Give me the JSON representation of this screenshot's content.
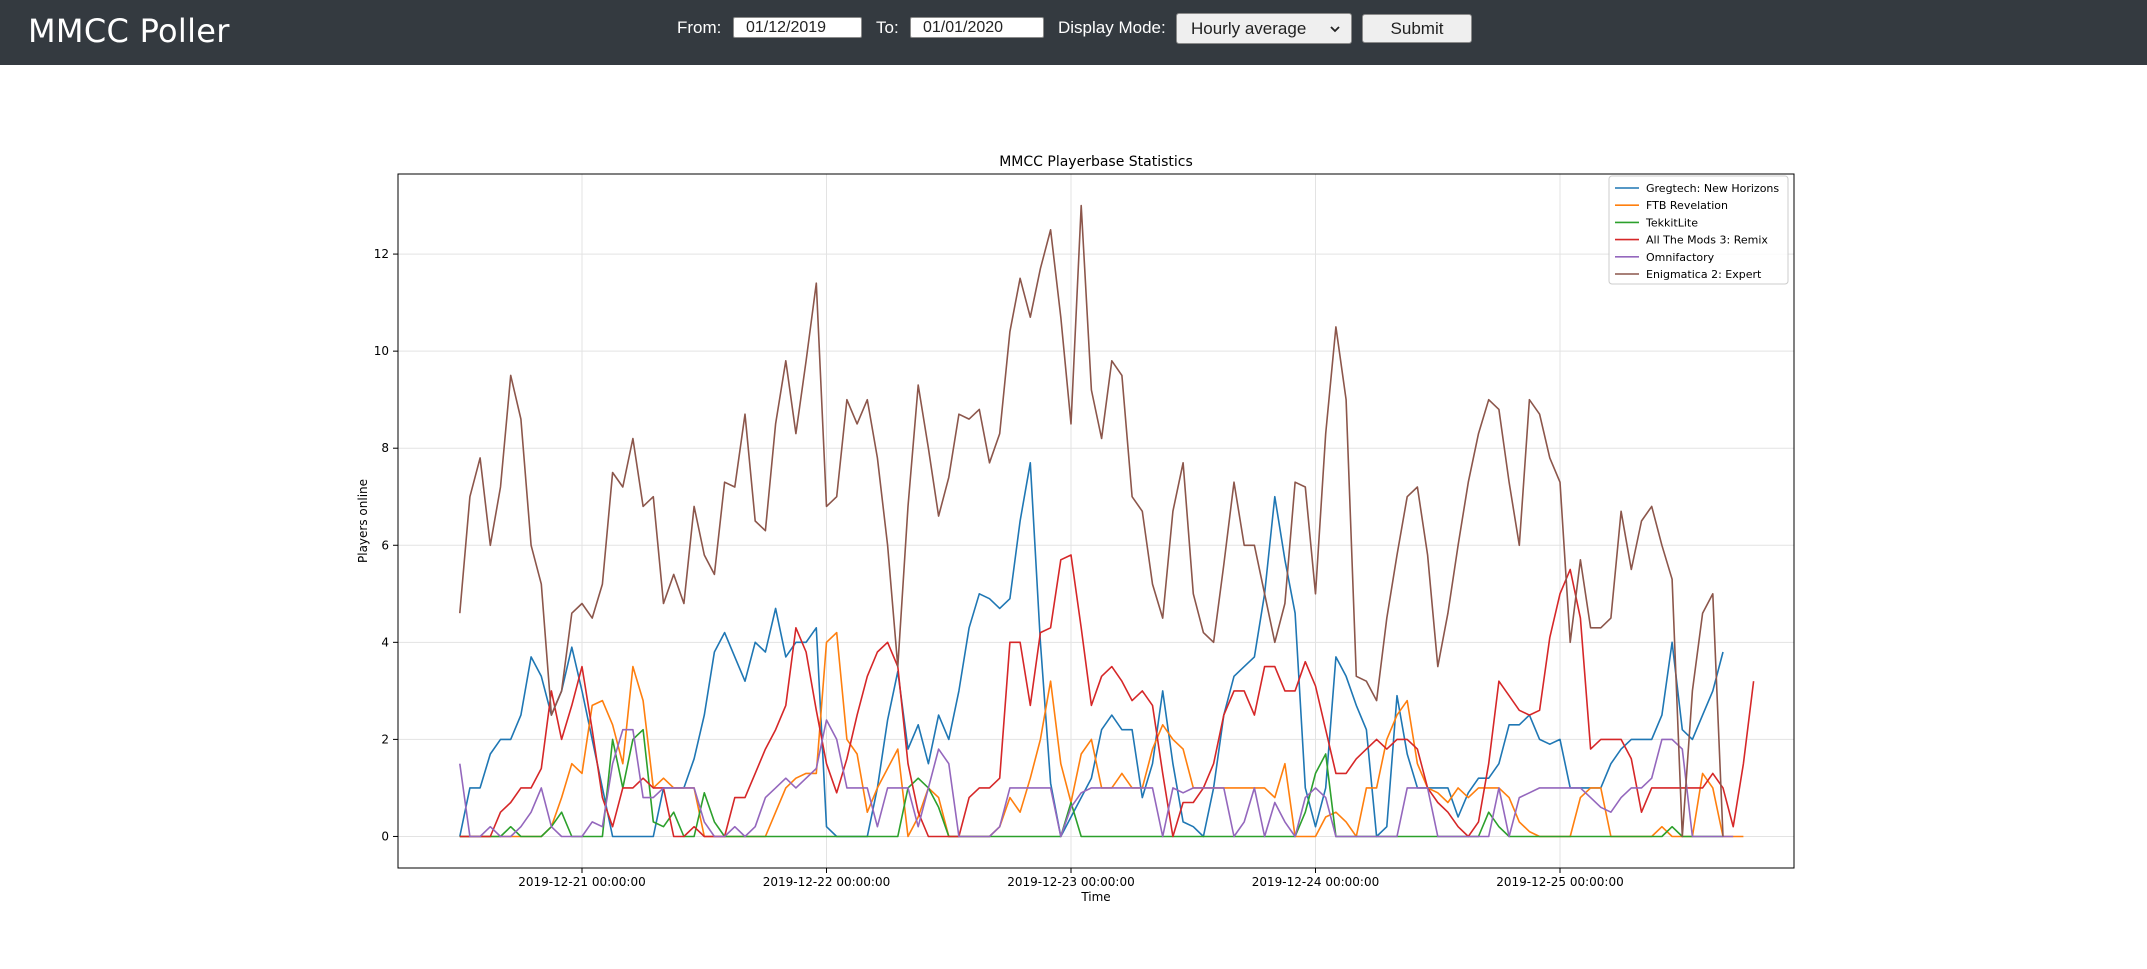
{
  "header": {
    "brand": "MMCC Poller",
    "from_label": "From:",
    "from_value": "01/12/2019",
    "to_label": "To:",
    "to_value": "01/01/2020",
    "mode_label": "Display Mode:",
    "mode_value": "Hourly average",
    "submit_label": "Submit"
  },
  "chart_data": {
    "type": "line",
    "title": "MMCC Playerbase Statistics",
    "xlabel": "Time",
    "ylabel": "Players online",
    "ylim": [
      -0.65,
      13.65
    ],
    "yticks": [
      0,
      2,
      4,
      6,
      8,
      10,
      12
    ],
    "x_start": "2019-12-20 12:00:00",
    "x_step_hours": 1,
    "xticks": [
      "2019-12-21 00:00:00",
      "2019-12-22 00:00:00",
      "2019-12-23 00:00:00",
      "2019-12-24 00:00:00",
      "2019-12-25 00:00:00"
    ],
    "grid": true,
    "legend_position": "top-right",
    "series": [
      {
        "name": "Gregtech: New Horizons",
        "color": "#1f77b4",
        "values": [
          0,
          1,
          1,
          1.7,
          2,
          2,
          2.5,
          3.7,
          3.3,
          2.5,
          3,
          3.9,
          3,
          2,
          1,
          0,
          0,
          0,
          0,
          0,
          1,
          1,
          1,
          1.6,
          2.5,
          3.8,
          4.2,
          3.7,
          3.2,
          4,
          3.8,
          4.7,
          3.7,
          4,
          4,
          4.3,
          0.2,
          0,
          0,
          0,
          0,
          1,
          2.4,
          3.4,
          1.8,
          2.3,
          1.5,
          2.5,
          2,
          3,
          4.3,
          5,
          4.9,
          4.7,
          4.9,
          6.5,
          7.7,
          4,
          1.1,
          0,
          0.4,
          0.8,
          1.2,
          2.2,
          2.5,
          2.2,
          2.2,
          0.8,
          1.5,
          3,
          1.5,
          0.3,
          0.2,
          0,
          1,
          2.5,
          3.3,
          3.5,
          3.7,
          5,
          7,
          5.7,
          4.6,
          1,
          0.2,
          1,
          3.7,
          3.3,
          2.7,
          2.2,
          0,
          0.2,
          2.9,
          1.7,
          1,
          1,
          1,
          1,
          0.4,
          0.9,
          1.2,
          1.2,
          1.5,
          2.3,
          2.3,
          2.5,
          2,
          1.9,
          2,
          1,
          1,
          1,
          1,
          1.5,
          1.8,
          2,
          2,
          2,
          2.5,
          4,
          2.2,
          2,
          2.5,
          3,
          3.8
        ]
      },
      {
        "name": "FTB Revelation",
        "color": "#ff7f0e",
        "values": [
          0,
          0,
          0,
          0,
          0,
          0,
          0,
          0,
          0,
          0.2,
          0.8,
          1.5,
          1.3,
          2.7,
          2.8,
          2.3,
          1.5,
          3.5,
          2.8,
          1,
          1.2,
          1,
          1,
          1,
          0,
          0,
          0,
          0,
          0,
          0,
          0,
          0.5,
          1,
          1.2,
          1.3,
          1.3,
          4,
          4.2,
          2,
          1.7,
          0.5,
          1,
          1.4,
          1.8,
          0,
          0.4,
          1,
          0.8,
          0,
          0,
          0,
          0,
          0,
          0.2,
          0.8,
          0.5,
          1.2,
          2,
          3.2,
          1.5,
          0.7,
          1.7,
          2,
          1,
          1,
          1.3,
          1,
          1,
          1.8,
          2.3,
          2,
          1.8,
          1,
          1,
          1,
          1,
          1,
          1,
          1,
          1,
          0.8,
          1.5,
          0,
          0,
          0,
          0.4,
          0.5,
          0.3,
          0,
          1,
          1,
          2,
          2.5,
          2.8,
          1.5,
          1,
          0.9,
          0.7,
          1,
          0.8,
          1,
          1,
          1,
          0.8,
          0.3,
          0.1,
          0,
          0,
          0,
          0,
          0.8,
          1,
          1,
          0,
          0,
          0,
          0,
          0,
          0.2,
          0,
          0,
          0,
          1.3,
          1,
          0,
          0,
          0
        ]
      },
      {
        "name": "TekkitLite",
        "color": "#2ca02c",
        "values": [
          0,
          0,
          0,
          0,
          0,
          0.2,
          0,
          0,
          0,
          0.2,
          0.5,
          0,
          0,
          0,
          0,
          2,
          1,
          2,
          2.2,
          0.3,
          0.2,
          0.5,
          0,
          0,
          0.9,
          0.3,
          0,
          0,
          0,
          0,
          0,
          0,
          0,
          0,
          0,
          0,
          0,
          0,
          0,
          0,
          0,
          0,
          0,
          0,
          1,
          1.2,
          1,
          0.6,
          0,
          0,
          0,
          0,
          0,
          0,
          0,
          0,
          0,
          0,
          0,
          0,
          0.7,
          0,
          0,
          0,
          0,
          0,
          0,
          0,
          0,
          0,
          0,
          0,
          0,
          0,
          0,
          0,
          0,
          0,
          0,
          0,
          0,
          0,
          0,
          0.5,
          1.3,
          1.7,
          0,
          0,
          0,
          0,
          0,
          0,
          0,
          0,
          0,
          0,
          0,
          0,
          0,
          0,
          0,
          0.5,
          0.2,
          0,
          0,
          0,
          0,
          0,
          0,
          0,
          0,
          0,
          0,
          0,
          0,
          0,
          0,
          0,
          0,
          0.2,
          0,
          0,
          0,
          0,
          0
        ]
      },
      {
        "name": "All The Mods 3: Remix",
        "color": "#d62728",
        "values": [
          0,
          0,
          0,
          0,
          0.5,
          0.7,
          1,
          1,
          1.4,
          3,
          2,
          2.7,
          3.5,
          2.2,
          0.8,
          0.2,
          1,
          1,
          1.2,
          1,
          1,
          0,
          0,
          0.2,
          0,
          0,
          0,
          0.8,
          0.8,
          1.3,
          1.8,
          2.2,
          2.7,
          4.3,
          3.8,
          2.6,
          1.5,
          0.9,
          1.6,
          2.5,
          3.3,
          3.8,
          4,
          3.5,
          1.5,
          0.5,
          0,
          0,
          0,
          0,
          0.8,
          1,
          1,
          1.2,
          4,
          4,
          2.7,
          4.2,
          4.3,
          5.7,
          5.8,
          4.3,
          2.7,
          3.3,
          3.5,
          3.2,
          2.8,
          3,
          2.7,
          1.3,
          0,
          0.7,
          0.7,
          1,
          1.5,
          2.5,
          3,
          3,
          2.5,
          3.5,
          3.5,
          3,
          3,
          3.6,
          3.1,
          2.2,
          1.3,
          1.3,
          1.6,
          1.8,
          2,
          1.8,
          2,
          2,
          1.8,
          1,
          0.7,
          0.5,
          0.2,
          0,
          0.3,
          1.5,
          3.2,
          2.9,
          2.6,
          2.5,
          2.6,
          4.1,
          5,
          5.5,
          4.5,
          1.8,
          2,
          2,
          2,
          1.6,
          0.5,
          1,
          1,
          1,
          1,
          1,
          1,
          1.3,
          1,
          0.2,
          1.5,
          3.2
        ]
      },
      {
        "name": "Omnifactory",
        "color": "#9467bd",
        "values": [
          1.5,
          0,
          0,
          0.2,
          0,
          0,
          0.2,
          0.5,
          1,
          0.2,
          0,
          0,
          0,
          0.3,
          0.2,
          1.5,
          2.2,
          2.2,
          0.8,
          0.8,
          1,
          1,
          1,
          1,
          0.3,
          0,
          0,
          0.2,
          0,
          0.2,
          0.8,
          1,
          1.2,
          1,
          1.2,
          1.4,
          2.4,
          2,
          1,
          1,
          1,
          0.2,
          1,
          1,
          1,
          0.2,
          1,
          1.8,
          1.5,
          0,
          0,
          0,
          0,
          0.2,
          1,
          1,
          1,
          1,
          1,
          0,
          0.6,
          0.9,
          1,
          1,
          1,
          1,
          1,
          1,
          1,
          0,
          1,
          0.9,
          1,
          1,
          1,
          1,
          0,
          0.3,
          1,
          0,
          0.7,
          0.3,
          0,
          0.8,
          1,
          0.8,
          0,
          0,
          0,
          0,
          0,
          0,
          0,
          1,
          1,
          1,
          0,
          0,
          0,
          0,
          0,
          0,
          1,
          0,
          0.8,
          0.9,
          1,
          1,
          1,
          1,
          1,
          0.8,
          0.6,
          0.5,
          0.8,
          1,
          1,
          1.2,
          2,
          2,
          1.8,
          0,
          0,
          0,
          0,
          0
        ]
      },
      {
        "name": "Enigmatica 2: Expert",
        "color": "#8c564b",
        "values": [
          4.6,
          7,
          7.8,
          6,
          7.2,
          9.5,
          8.6,
          6,
          5.2,
          2.5,
          3,
          4.6,
          4.8,
          4.5,
          5.2,
          7.5,
          7.2,
          8.2,
          6.8,
          7,
          4.8,
          5.4,
          4.8,
          6.8,
          5.8,
          5.4,
          7.3,
          7.2,
          8.7,
          6.5,
          6.3,
          8.5,
          9.8,
          8.3,
          9.8,
          11.4,
          6.8,
          7,
          9,
          8.5,
          9,
          7.8,
          6,
          3.5,
          6.8,
          9.3,
          8,
          6.6,
          7.4,
          8.7,
          8.6,
          8.8,
          7.7,
          8.3,
          10.4,
          11.5,
          10.7,
          11.7,
          12.5,
          10.7,
          8.5,
          13,
          9.2,
          8.2,
          9.8,
          9.5,
          7,
          6.7,
          5.2,
          4.5,
          6.7,
          7.7,
          5,
          4.2,
          4,
          5.6,
          7.3,
          6,
          6,
          5,
          4,
          4.8,
          7.3,
          7.2,
          5,
          8.3,
          10.5,
          9,
          3.3,
          3.2,
          2.8,
          4.5,
          5.8,
          7,
          7.2,
          5.8,
          3.5,
          4.6,
          6,
          7.3,
          8.3,
          9,
          8.8,
          7.3,
          6,
          9,
          8.7,
          7.8,
          7.3,
          4,
          5.7,
          4.3,
          4.3,
          4.5,
          6.7,
          5.5,
          6.5,
          6.8,
          6,
          5.3,
          0,
          3,
          4.6,
          5,
          0
        ]
      }
    ]
  }
}
